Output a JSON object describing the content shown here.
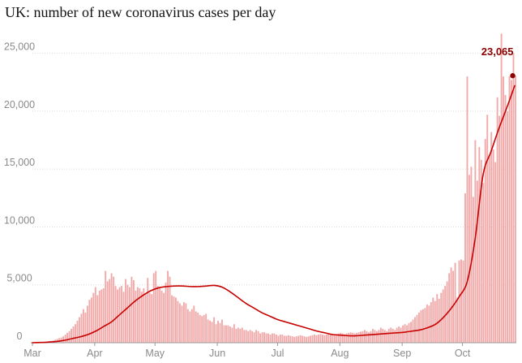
{
  "chart_data": {
    "type": "bar",
    "title": "UK: number of new coronavirus cases per day",
    "xlabel": "",
    "ylabel": "",
    "ylim": [
      0,
      27500
    ],
    "y_ticks": [
      {
        "value": 0,
        "label": "0"
      },
      {
        "value": 5000,
        "label": "5,000"
      },
      {
        "value": 10000,
        "label": "10,000"
      },
      {
        "value": 15000,
        "label": "15,000"
      },
      {
        "value": 20000,
        "label": "20,000"
      },
      {
        "value": 25000,
        "label": "25,000"
      }
    ],
    "x_ticks": [
      {
        "day": 0,
        "label": "Mar"
      },
      {
        "day": 31,
        "label": "Apr"
      },
      {
        "day": 61,
        "label": "May"
      },
      {
        "day": 92,
        "label": "Jun"
      },
      {
        "day": 122,
        "label": "Jul"
      },
      {
        "day": 153,
        "label": "Aug"
      },
      {
        "day": 184,
        "label": "Sep"
      },
      {
        "day": 214,
        "label": "Oct"
      }
    ],
    "grid": true,
    "series": [
      {
        "kind": "bar",
        "color": "#f1a9a9",
        "values": [
          10,
          20,
          30,
          40,
          50,
          60,
          80,
          110,
          140,
          160,
          200,
          260,
          330,
          400,
          450,
          550,
          700,
          850,
          1000,
          1200,
          1400,
          1600,
          1900,
          2200,
          2500,
          2900,
          2600,
          3200,
          3700,
          3900,
          4300,
          4800,
          4100,
          4500,
          4600,
          4700,
          6200,
          5300,
          5500,
          6000,
          5700,
          4900,
          4600,
          4800,
          4900,
          4400,
          5500,
          5000,
          4800,
          5700,
          5400,
          4500,
          4800,
          4700,
          4400,
          4700,
          4200,
          5600,
          4300,
          4200,
          6000,
          6200,
          4900,
          4700,
          4500,
          4300,
          5200,
          6200,
          5700,
          4100,
          4000,
          3900,
          3600,
          3400,
          3200,
          3500,
          3400,
          2900,
          2700,
          2900,
          3200,
          2700,
          2600,
          2400,
          2300,
          2400,
          2500,
          2000,
          1900,
          1800,
          2200,
          1600,
          1900,
          1700,
          2000,
          1500,
          1500,
          1500,
          1400,
          1300,
          1600,
          1200,
          1300,
          1200,
          1300,
          1100,
          1100,
          1000,
          1100,
          1000,
          900,
          1100,
          1000,
          800,
          900,
          900,
          800,
          800,
          700,
          800,
          800,
          700,
          600,
          700,
          700,
          600,
          600,
          650,
          600,
          550,
          500,
          550,
          600,
          650,
          600,
          550,
          500,
          550,
          600,
          650,
          700,
          650,
          700,
          750,
          700,
          650,
          700,
          750,
          800,
          750,
          700,
          750,
          800,
          850,
          800,
          750,
          800,
          850,
          900,
          850,
          800,
          850,
          900,
          950,
          1000,
          1100,
          1000,
          900,
          1000,
          1200,
          1100,
          1000,
          1100,
          1300,
          1200,
          1100,
          1000,
          1200,
          1300,
          1200,
          1100,
          1300,
          1400,
          1300,
          1500,
          1600,
          1500,
          1700,
          1800,
          2000,
          2200,
          2400,
          2600,
          2800,
          2900,
          3000,
          3300,
          3200,
          3500,
          3900,
          3600,
          4200,
          3800,
          4300,
          4600,
          4900,
          5300,
          6000,
          6500,
          6200,
          6900,
          3900,
          7100,
          7200,
          7100,
          12900,
          23000,
          14500,
          15200,
          12600,
          17500,
          14000,
          16900,
          15800,
          13800,
          17600,
          19700,
          16200,
          18200,
          16700,
          15600,
          21200,
          19600,
          26700,
          23000,
          21400,
          20000,
          23000,
          22700,
          25000,
          23065
        ]
      },
      {
        "kind": "line",
        "name": "",
        "color": "#c70000",
        "values": [
          0,
          20,
          50,
          100,
          200,
          350,
          500,
          700,
          1000,
          1400,
          1800,
          2400,
          3000,
          3600,
          4100,
          4500,
          4750,
          4850,
          4900,
          4900,
          4850,
          4850,
          4900,
          4950,
          4800,
          4400,
          3900,
          3400,
          3000,
          2600,
          2300,
          2000,
          1800,
          1600,
          1400,
          1200,
          1000,
          850,
          700,
          650,
          600,
          600,
          650,
          700,
          750,
          800,
          850,
          900,
          1000,
          1100,
          1300,
          1600,
          2200,
          3000,
          4000,
          5300,
          9000,
          14500,
          16500,
          18500,
          20300,
          22200
        ]
      }
    ],
    "annotations": [
      {
        "text": "23,065",
        "day": 239,
        "value": 23065
      }
    ]
  }
}
